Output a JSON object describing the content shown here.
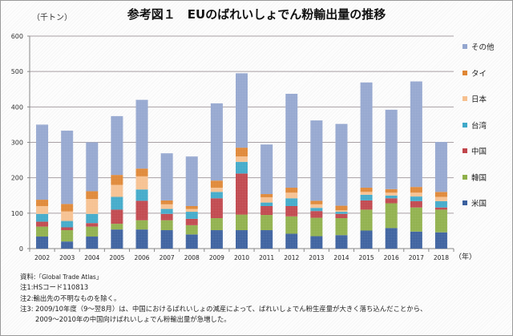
{
  "title": "参考図１　EUのばれいしょでん粉輸出量の推移",
  "unit_label": "（千トン）",
  "year_unit_label": "（年）",
  "legend_order": [
    "その他",
    "タイ",
    "日本",
    "台湾",
    "中国",
    "韓国",
    "米国"
  ],
  "notes": {
    "source_prefix": "資料:",
    "source_name": "「Global Trade Atlas」",
    "note1": "注1:HSコード110813",
    "note2": "注2:輸出先の不明なものを除く。",
    "note3_line1": "注3: 2009/10年度（9～翌8月）は、中国におけるばれいしょの減産によって、ばれいしょでん粉生産量が大きく落ち込んだことから、",
    "note3_line2": "2009～2010年の中国向けばれいしょでん粉輸出量が急増した。"
  },
  "chart_data": {
    "type": "bar",
    "stacked": true,
    "title": "参考図１　EUのばれいしょでん粉輸出量の推移",
    "xlabel": "（年）",
    "ylabel": "（千トン）",
    "ylim": [
      0,
      600
    ],
    "yticks": [
      0,
      100,
      200,
      300,
      400,
      500,
      600
    ],
    "grid": true,
    "legend_position": "right",
    "categories": [
      "2002",
      "2003",
      "2004",
      "2005",
      "2006",
      "2007",
      "2008",
      "2009",
      "2010",
      "2011",
      "2012",
      "2013",
      "2014",
      "2015",
      "2016",
      "2017",
      "2018"
    ],
    "series": [
      {
        "name": "米国",
        "color": "#3a5f9e",
        "values": [
          34,
          20,
          34,
          54,
          54,
          52,
          40,
          52,
          52,
          52,
          42,
          35,
          38,
          51,
          58,
          48,
          46
        ]
      },
      {
        "name": "韓国",
        "color": "#8fb04a",
        "values": [
          28,
          32,
          28,
          16,
          26,
          28,
          26,
          34,
          44,
          43,
          49,
          52,
          48,
          59,
          70,
          68,
          64
        ]
      },
      {
        "name": "中国",
        "color": "#c0454b",
        "values": [
          14,
          8,
          10,
          40,
          55,
          18,
          18,
          56,
          116,
          25,
          29,
          19,
          12,
          26,
          14,
          18,
          6
        ]
      },
      {
        "name": "台湾",
        "color": "#3fa9c9",
        "values": [
          22,
          18,
          26,
          36,
          32,
          14,
          20,
          18,
          33,
          10,
          22,
          9,
          6,
          16,
          8,
          13,
          18
        ]
      },
      {
        "name": "日本",
        "color": "#f6c08f",
        "values": [
          22,
          27,
          42,
          34,
          37,
          13,
          8,
          12,
          15,
          15,
          16,
          10,
          4,
          8,
          8,
          11,
          12
        ]
      },
      {
        "name": "タイ",
        "color": "#df8634",
        "values": [
          18,
          21,
          22,
          28,
          22,
          11,
          8,
          20,
          25,
          9,
          14,
          10,
          13,
          12,
          10,
          16,
          14
        ]
      },
      {
        "name": "その他",
        "color": "#94a6cf",
        "values": [
          212,
          207,
          138,
          166,
          194,
          133,
          140,
          218,
          210,
          140,
          265,
          227,
          231,
          297,
          224,
          298,
          141
        ]
      }
    ]
  }
}
